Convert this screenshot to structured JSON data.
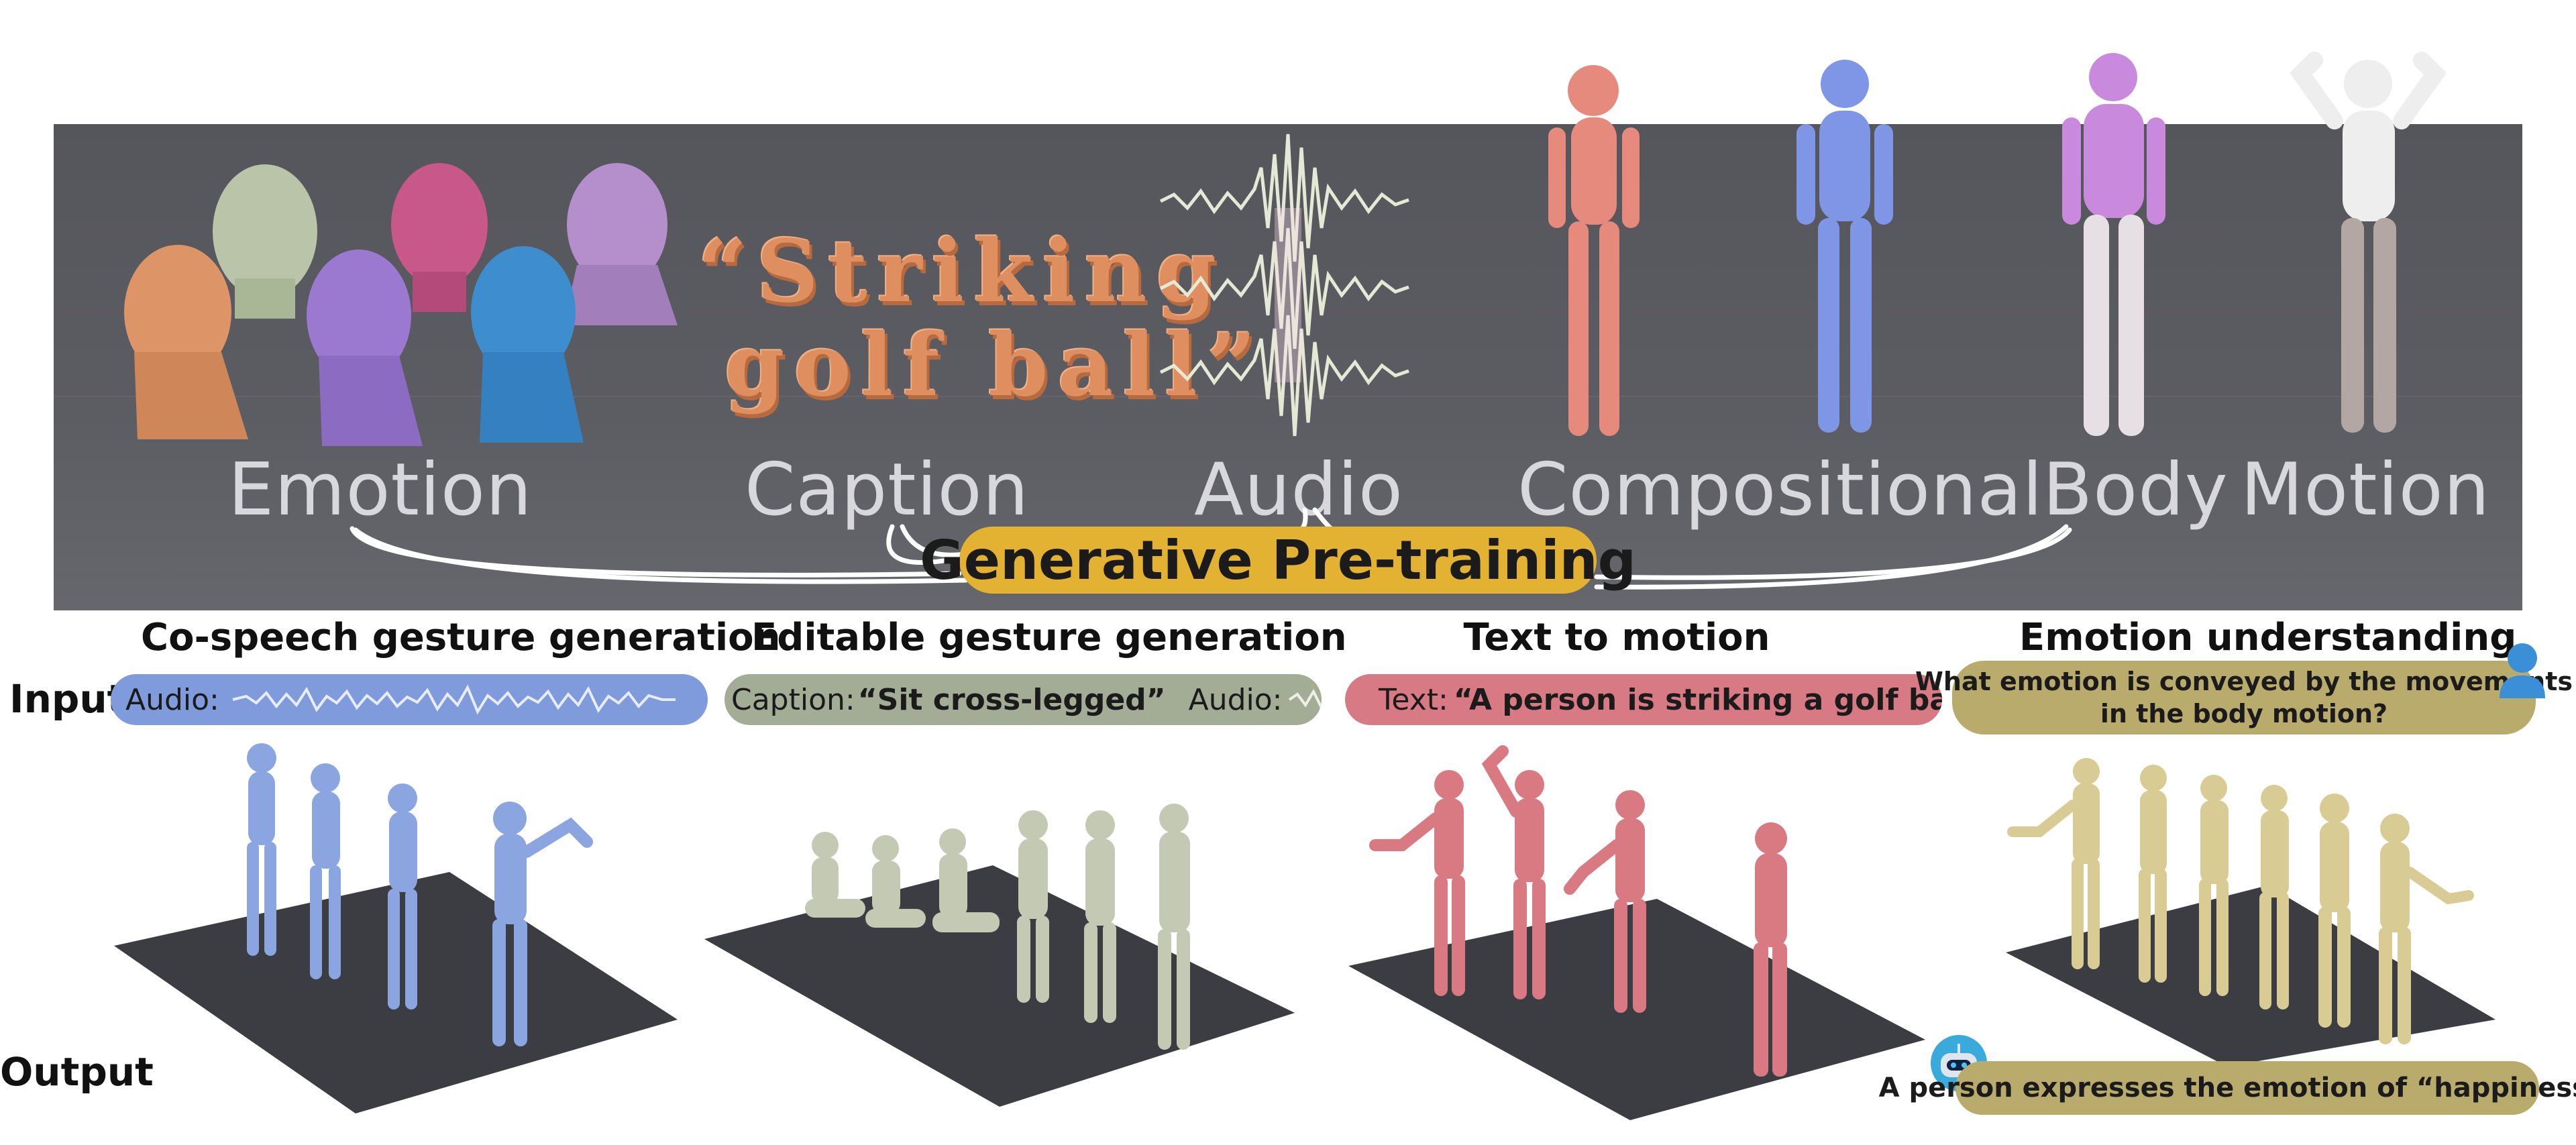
{
  "banner": {
    "modalities": [
      "Emotion",
      "Caption",
      "Audio",
      "Compositional",
      "Body",
      "Motion"
    ],
    "caption_line1": "“Striking",
    "caption_line2": "golf ball”",
    "center_label": "Generative Pre-training"
  },
  "row_labels": {
    "input": "Input",
    "output": "Output"
  },
  "tasks": [
    {
      "title": "Co-speech gesture generation",
      "input_prefix": "Audio:"
    },
    {
      "title": "Editable gesture generation",
      "input_prefix": "Caption:",
      "input_caption": "“Sit cross-legged”",
      "input_audio_prefix": "Audio:"
    },
    {
      "title": "Text to motion",
      "input_prefix": "Text:",
      "input_text": "“A person is striking a golf ball”"
    },
    {
      "title": "Emotion understanding",
      "question_line1": "What emotion is conveyed by the movements",
      "question_line2": "in the body motion?",
      "answer": "A person expresses the emotion of “happiness”."
    }
  ],
  "colors": {
    "banner": "#5a5b61",
    "gold": "#e3b232",
    "blue": "#7f9bdc",
    "sage": "#a3ad96",
    "rose": "#d87a84",
    "khaki": "#b8ab6c",
    "user_icon": "#3a8fd6",
    "robot_icon": "#3aa9dc"
  },
  "icons": [
    "user-avatar-icon",
    "robot-avatar-icon",
    "waveform-icon"
  ]
}
